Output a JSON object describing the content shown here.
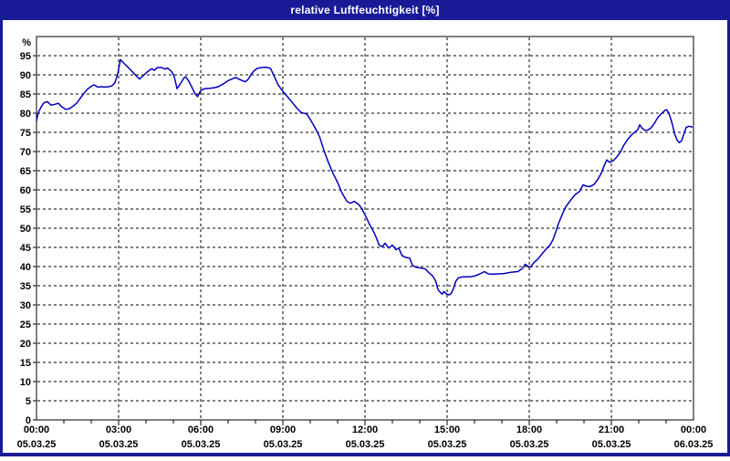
{
  "window": {
    "title": "relative Luftfeuchtigkeit [%]"
  },
  "colors": {
    "titlebar": "#1a1a96",
    "window_border": "#1a1a96",
    "plot_background": "#ffffff",
    "frame": "#000000",
    "grid": "#000000",
    "line": "#0000bb",
    "text": "#000000",
    "title_text": "#ffffff"
  },
  "chart_data": {
    "type": "line",
    "title": "relative Luftfeuchtigkeit [%]",
    "ylabel": "%",
    "ylim": [
      0,
      100
    ],
    "x_range_minutes": [
      0,
      1440
    ],
    "grid": true,
    "legend": "none",
    "y_ticks": [
      0,
      5,
      10,
      15,
      20,
      25,
      30,
      35,
      40,
      45,
      50,
      55,
      60,
      65,
      70,
      75,
      80,
      85,
      90,
      95
    ],
    "x_ticks": [
      {
        "time": "00:00",
        "date": "05.03.25"
      },
      {
        "time": "03:00",
        "date": "05.03.25"
      },
      {
        "time": "06:00",
        "date": "05.03.25"
      },
      {
        "time": "09:00",
        "date": "05.03.25"
      },
      {
        "time": "12:00",
        "date": "05.03.25"
      },
      {
        "time": "15:00",
        "date": "05.03.25"
      },
      {
        "time": "18:00",
        "date": "05.03.25"
      },
      {
        "time": "21:00",
        "date": "05.03.25"
      },
      {
        "time": "00:00",
        "date": "06.03.25"
      }
    ],
    "x_minor_tick_interval_minutes": 60,
    "series": [
      {
        "name": "relative Luftfeuchtigkeit",
        "unit": "%",
        "color": "#0000bb",
        "points": [
          [
            0,
            78
          ],
          [
            4,
            80.2
          ],
          [
            10,
            81.6
          ],
          [
            16,
            82.7
          ],
          [
            24,
            83
          ],
          [
            32,
            82.1
          ],
          [
            40,
            82.3
          ],
          [
            48,
            82.6
          ],
          [
            56,
            81.6
          ],
          [
            64,
            81
          ],
          [
            72,
            81.2
          ],
          [
            80,
            81.8
          ],
          [
            88,
            82.6
          ],
          [
            96,
            83.9
          ],
          [
            104,
            85.2
          ],
          [
            112,
            86.3
          ],
          [
            120,
            87
          ],
          [
            126,
            87.4
          ],
          [
            134,
            86.8
          ],
          [
            142,
            86.9
          ],
          [
            150,
            86.8
          ],
          [
            158,
            86.9
          ],
          [
            166,
            87.2
          ],
          [
            172,
            88
          ],
          [
            178,
            90.2
          ],
          [
            184,
            94
          ],
          [
            191,
            93.1
          ],
          [
            199,
            92.2
          ],
          [
            207,
            91.2
          ],
          [
            215,
            90.2
          ],
          [
            222,
            89.3
          ],
          [
            226,
            88.9
          ],
          [
            234,
            89.8
          ],
          [
            242,
            90.7
          ],
          [
            250,
            91.4
          ],
          [
            253,
            91.6
          ],
          [
            258,
            91.2
          ],
          [
            265,
            91.9
          ],
          [
            275,
            91.9
          ],
          [
            281,
            91.5
          ],
          [
            287,
            91.8
          ],
          [
            295,
            91
          ],
          [
            301,
            89.9
          ],
          [
            305,
            88
          ],
          [
            308,
            86.4
          ],
          [
            315,
            87.6
          ],
          [
            323,
            89.2
          ],
          [
            327,
            89.5
          ],
          [
            333,
            88.5
          ],
          [
            340,
            86.9
          ],
          [
            347,
            85.2
          ],
          [
            353,
            84.3
          ],
          [
            360,
            85.9
          ],
          [
            368,
            86.4
          ],
          [
            380,
            86.5
          ],
          [
            392,
            86.7
          ],
          [
            400,
            87
          ],
          [
            410,
            87.7
          ],
          [
            420,
            88.5
          ],
          [
            430,
            89
          ],
          [
            437,
            89.3
          ],
          [
            445,
            88.8
          ],
          [
            457,
            88.2
          ],
          [
            463,
            88.7
          ],
          [
            470,
            90
          ],
          [
            477,
            91.1
          ],
          [
            484,
            91.7
          ],
          [
            493,
            91.9
          ],
          [
            503,
            92
          ],
          [
            513,
            91.7
          ],
          [
            518,
            90.4
          ],
          [
            525,
            88.6
          ],
          [
            530,
            87.3
          ],
          [
            540,
            85.7
          ],
          [
            550,
            84.3
          ],
          [
            560,
            82.9
          ],
          [
            570,
            81.4
          ],
          [
            580,
            80.2
          ],
          [
            592,
            79.8
          ],
          [
            600,
            78.4
          ],
          [
            610,
            76.3
          ],
          [
            620,
            74
          ],
          [
            630,
            70.3
          ],
          [
            640,
            67.1
          ],
          [
            650,
            64.3
          ],
          [
            660,
            61.9
          ],
          [
            670,
            59.1
          ],
          [
            680,
            57.1
          ],
          [
            687,
            56.5
          ],
          [
            697,
            57
          ],
          [
            706,
            56.2
          ],
          [
            712,
            55.3
          ],
          [
            720,
            53.5
          ],
          [
            730,
            51
          ],
          [
            740,
            48.8
          ],
          [
            746,
            47.2
          ],
          [
            751,
            45.6
          ],
          [
            758,
            45.2
          ],
          [
            764,
            46.1
          ],
          [
            772,
            44.8
          ],
          [
            780,
            45.6
          ],
          [
            788,
            44.4
          ],
          [
            794,
            44.8
          ],
          [
            801,
            42.9
          ],
          [
            808,
            42.4
          ],
          [
            818,
            42.2
          ],
          [
            824,
            40.3
          ],
          [
            832,
            39.8
          ],
          [
            844,
            39.6
          ],
          [
            852,
            39.4
          ],
          [
            860,
            38.4
          ],
          [
            868,
            37.6
          ],
          [
            875,
            36.2
          ],
          [
            880,
            34
          ],
          [
            884,
            33.4
          ],
          [
            889,
            32.8
          ],
          [
            893,
            33.5
          ],
          [
            898,
            32.9
          ],
          [
            904,
            32.6
          ],
          [
            909,
            33
          ],
          [
            914,
            34.3
          ],
          [
            919,
            36.2
          ],
          [
            925,
            37.1
          ],
          [
            935,
            37.3
          ],
          [
            950,
            37.3
          ],
          [
            962,
            37.6
          ],
          [
            972,
            38.1
          ],
          [
            982,
            38.7
          ],
          [
            990,
            38.1
          ],
          [
            1000,
            38
          ],
          [
            1012,
            38.1
          ],
          [
            1025,
            38.2
          ],
          [
            1040,
            38.5
          ],
          [
            1055,
            38.7
          ],
          [
            1065,
            39.5
          ],
          [
            1071,
            40.6
          ],
          [
            1078,
            40
          ],
          [
            1082,
            39.8
          ],
          [
            1090,
            41
          ],
          [
            1100,
            42.1
          ],
          [
            1110,
            43.6
          ],
          [
            1118,
            44.7
          ],
          [
            1126,
            45.7
          ],
          [
            1132,
            47
          ],
          [
            1138,
            49
          ],
          [
            1144,
            51.2
          ],
          [
            1152,
            53.5
          ],
          [
            1160,
            55.6
          ],
          [
            1170,
            57.2
          ],
          [
            1180,
            58.7
          ],
          [
            1190,
            59.6
          ],
          [
            1198,
            61.3
          ],
          [
            1206,
            60.9
          ],
          [
            1214,
            60.9
          ],
          [
            1222,
            61.4
          ],
          [
            1230,
            62.7
          ],
          [
            1238,
            64.4
          ],
          [
            1245,
            66.5
          ],
          [
            1250,
            67.8
          ],
          [
            1256,
            67.2
          ],
          [
            1264,
            67.6
          ],
          [
            1272,
            68.6
          ],
          [
            1280,
            69.9
          ],
          [
            1288,
            71.8
          ],
          [
            1296,
            73.2
          ],
          [
            1304,
            74.3
          ],
          [
            1312,
            75.1
          ],
          [
            1318,
            75.7
          ],
          [
            1322,
            77
          ],
          [
            1328,
            76
          ],
          [
            1334,
            75.5
          ],
          [
            1340,
            75.6
          ],
          [
            1347,
            76.2
          ],
          [
            1354,
            77.3
          ],
          [
            1362,
            78.9
          ],
          [
            1370,
            79.9
          ],
          [
            1377,
            80.7
          ],
          [
            1381,
            80.9
          ],
          [
            1386,
            80
          ],
          [
            1390,
            78.6
          ],
          [
            1394,
            76.9
          ],
          [
            1399,
            74.5
          ],
          [
            1404,
            73
          ],
          [
            1409,
            72.3
          ],
          [
            1414,
            72.8
          ],
          [
            1419,
            74.6
          ],
          [
            1424,
            76.3
          ],
          [
            1430,
            76.6
          ],
          [
            1437,
            76.4
          ]
        ]
      }
    ]
  }
}
